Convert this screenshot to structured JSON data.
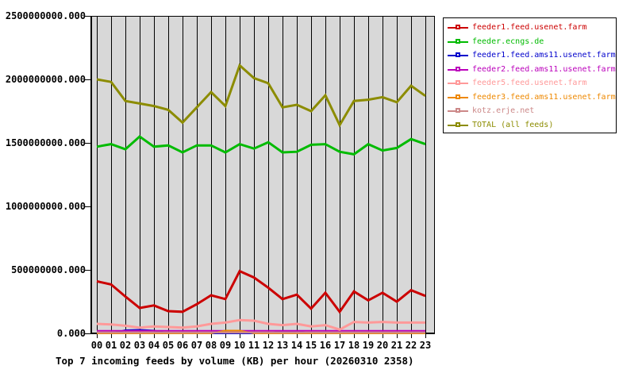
{
  "title": "Top 7 incoming feeds by volume (KB) per hour (20260310 2358)",
  "chart_data": {
    "type": "line",
    "title": "Top 7 incoming feeds by volume (KB) per hour (20260310 2358)",
    "xlabel": "",
    "ylabel": "",
    "x_categories": [
      "00",
      "01",
      "02",
      "03",
      "04",
      "05",
      "06",
      "07",
      "08",
      "09",
      "10",
      "11",
      "12",
      "13",
      "14",
      "15",
      "16",
      "17",
      "18",
      "19",
      "20",
      "21",
      "22",
      "23"
    ],
    "ylim": [
      0,
      2500000000
    ],
    "y_ticks": [
      {
        "label": "0.000",
        "value": 0
      },
      {
        "label": "500000000.000",
        "value": 500000000
      },
      {
        "label": "1000000000.000",
        "value": 1000000000
      },
      {
        "label": "1500000000.000",
        "value": 1500000000
      },
      {
        "label": "2000000000.000",
        "value": 2000000000
      },
      {
        "label": "2500000000.000",
        "value": 2500000000
      }
    ],
    "grid": "vertical-only",
    "plot_bg": "#d8d8d8",
    "grid_color": "#000000",
    "legend_position": "outside-top-right",
    "draw_order": [
      2,
      3,
      5,
      6,
      4,
      0,
      1,
      7
    ],
    "series": [
      {
        "name": "feeder1.feed.usenet.farm",
        "color": "#cc0000",
        "line_width": 3,
        "values": [
          410000000,
          385000000,
          290000000,
          200000000,
          220000000,
          175000000,
          170000000,
          230000000,
          300000000,
          270000000,
          490000000,
          440000000,
          360000000,
          270000000,
          305000000,
          195000000,
          320000000,
          170000000,
          330000000,
          260000000,
          320000000,
          250000000,
          340000000,
          295000000
        ]
      },
      {
        "name": "feeder.ecngs.de",
        "color": "#00bb00",
        "line_width": 3,
        "values": [
          1470000000,
          1490000000,
          1450000000,
          1550000000,
          1470000000,
          1480000000,
          1425000000,
          1480000000,
          1480000000,
          1425000000,
          1490000000,
          1455000000,
          1505000000,
          1425000000,
          1430000000,
          1485000000,
          1490000000,
          1430000000,
          1410000000,
          1490000000,
          1440000000,
          1460000000,
          1530000000,
          1490000000
        ]
      },
      {
        "name": "feeder1.feed.ams11.usenet.farm",
        "color": "#0000cc",
        "line_width": 2,
        "values": [
          0,
          0,
          25000000,
          28000000,
          22000000,
          0,
          0,
          0,
          0,
          0,
          0,
          0,
          0,
          18000000,
          16000000,
          0,
          0,
          0,
          0,
          0,
          0,
          0,
          0,
          0
        ]
      },
      {
        "name": "feeder2.feed.ams11.usenet.farm",
        "color": "#bb00bb",
        "line_width": 2,
        "values": [
          20000000,
          20000000,
          20000000,
          20000000,
          20000000,
          20000000,
          20000000,
          20000000,
          20000000,
          20000000,
          20000000,
          20000000,
          20000000,
          20000000,
          20000000,
          20000000,
          20000000,
          20000000,
          20000000,
          20000000,
          20000000,
          20000000,
          20000000,
          20000000
        ]
      },
      {
        "name": "feeder5.feed.usenet.farm",
        "color": "#ff9999",
        "line_width": 3,
        "values": [
          75000000,
          70000000,
          60000000,
          45000000,
          55000000,
          50000000,
          45000000,
          55000000,
          75000000,
          85000000,
          105000000,
          100000000,
          75000000,
          65000000,
          75000000,
          55000000,
          65000000,
          30000000,
          90000000,
          85000000,
          90000000,
          85000000,
          85000000,
          85000000
        ]
      },
      {
        "name": "feeder3.feed.ams11.usenet.farm",
        "color": "#ee8800",
        "line_width": 2,
        "values": [
          0,
          0,
          0,
          0,
          0,
          0,
          0,
          0,
          0,
          22000000,
          22000000,
          0,
          0,
          0,
          0,
          0,
          0,
          0,
          0,
          0,
          0,
          0,
          0,
          0
        ]
      },
      {
        "name": "kotz.erje.net",
        "color": "#cc8888",
        "line_width": 2.5,
        "values": [
          7000000,
          7000000,
          7000000,
          7000000,
          7000000,
          7000000,
          7000000,
          7000000,
          7000000,
          7000000,
          7000000,
          7000000,
          7000000,
          7000000,
          7000000,
          7000000,
          7000000,
          7000000,
          7000000,
          7000000,
          7000000,
          7000000,
          7000000,
          7000000
        ]
      },
      {
        "name": "TOTAL (all feeds)",
        "color": "#8c8c00",
        "line_width": 3,
        "values": [
          2000000000,
          1980000000,
          1830000000,
          1810000000,
          1790000000,
          1760000000,
          1660000000,
          1780000000,
          1900000000,
          1790000000,
          2110000000,
          2010000000,
          1970000000,
          1780000000,
          1800000000,
          1750000000,
          1875000000,
          1640000000,
          1830000000,
          1840000000,
          1860000000,
          1820000000,
          1950000000,
          1870000000
        ]
      }
    ]
  }
}
